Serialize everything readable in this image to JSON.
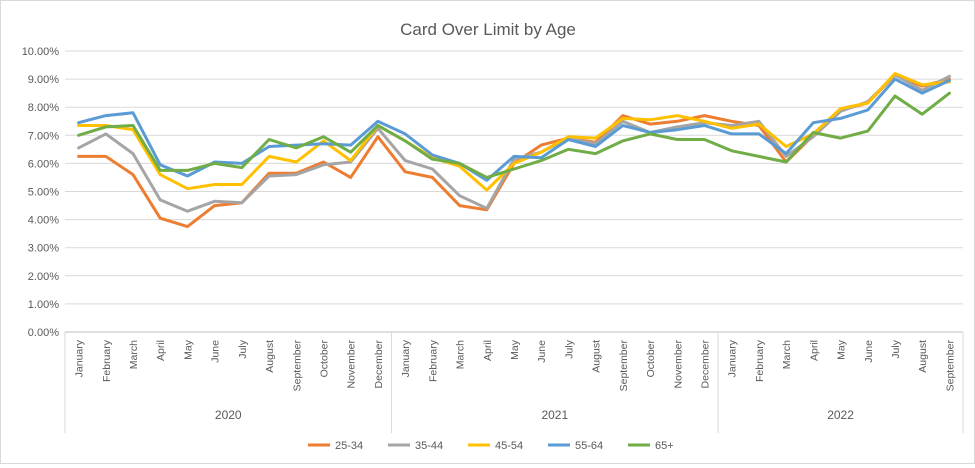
{
  "chart_data": {
    "type": "line",
    "title": "Card Over Limit by Age",
    "xlabel": "",
    "ylabel": "",
    "ylim": [
      0,
      10
    ],
    "yticks": [
      "0.00%",
      "1.00%",
      "2.00%",
      "3.00%",
      "4.00%",
      "5.00%",
      "6.00%",
      "7.00%",
      "8.00%",
      "9.00%",
      "10.00%"
    ],
    "grid": true,
    "legend_position": "bottom",
    "categories": [
      "January",
      "February",
      "March",
      "April",
      "May",
      "June",
      "July",
      "August",
      "September",
      "October",
      "November",
      "December",
      "January",
      "February",
      "March",
      "April",
      "May",
      "June",
      "July",
      "August",
      "September",
      "October",
      "November",
      "December",
      "January",
      "February",
      "March",
      "April",
      "May",
      "June",
      "July",
      "August",
      "September"
    ],
    "years": [
      {
        "label": "2020",
        "count": 12
      },
      {
        "label": "2021",
        "count": 12
      },
      {
        "label": "2022",
        "count": 9
      }
    ],
    "series": [
      {
        "name": "25-34",
        "color": "#ED7D31",
        "values": [
          6.25,
          6.25,
          5.6,
          4.05,
          3.75,
          4.5,
          4.6,
          5.65,
          5.65,
          6.05,
          5.5,
          6.95,
          5.7,
          5.5,
          4.5,
          4.35,
          6.0,
          6.65,
          6.9,
          6.75,
          7.7,
          7.4,
          7.5,
          7.7,
          7.5,
          7.35,
          6.05,
          7.0,
          7.9,
          8.15,
          9.15,
          8.75,
          9.0
        ]
      },
      {
        "label_note": "",
        "name": "35-44",
        "color": "#A5A5A5",
        "values": [
          6.55,
          7.05,
          6.35,
          4.7,
          4.3,
          4.65,
          4.6,
          5.55,
          5.6,
          5.95,
          6.05,
          7.25,
          6.1,
          5.8,
          4.85,
          4.4,
          6.15,
          6.4,
          6.9,
          6.7,
          7.5,
          7.1,
          7.3,
          7.45,
          7.35,
          7.5,
          6.25,
          6.95,
          7.85,
          8.2,
          9.15,
          8.6,
          9.1
        ]
      },
      {
        "name": "45-54",
        "color": "#FFC000",
        "values": [
          7.35,
          7.35,
          7.2,
          5.6,
          5.1,
          5.25,
          5.25,
          6.25,
          6.05,
          6.8,
          6.1,
          7.35,
          6.8,
          6.2,
          5.9,
          5.05,
          6.0,
          6.4,
          6.95,
          6.9,
          7.6,
          7.55,
          7.7,
          7.5,
          7.25,
          7.4,
          6.6,
          7.05,
          7.95,
          8.15,
          9.2,
          8.8,
          8.9
        ]
      },
      {
        "name": "55-64",
        "color": "#5B9BD5",
        "values": [
          7.45,
          7.7,
          7.8,
          5.95,
          5.55,
          6.05,
          6.0,
          6.6,
          6.65,
          6.7,
          6.65,
          7.5,
          7.05,
          6.3,
          6.0,
          5.4,
          6.25,
          6.2,
          6.85,
          6.6,
          7.35,
          7.1,
          7.2,
          7.35,
          7.05,
          7.05,
          6.35,
          7.45,
          7.6,
          7.9,
          9.0,
          8.5,
          8.95
        ]
      },
      {
        "name": "65+",
        "color": "#70AD47",
        "values": [
          7.0,
          7.3,
          7.35,
          5.75,
          5.75,
          6.0,
          5.85,
          6.85,
          6.55,
          6.95,
          6.4,
          7.35,
          6.8,
          6.15,
          6.0,
          5.5,
          5.8,
          6.1,
          6.5,
          6.35,
          6.8,
          7.05,
          6.85,
          6.85,
          6.45,
          6.25,
          6.05,
          7.1,
          6.9,
          7.15,
          8.4,
          7.75,
          8.5
        ]
      }
    ]
  }
}
